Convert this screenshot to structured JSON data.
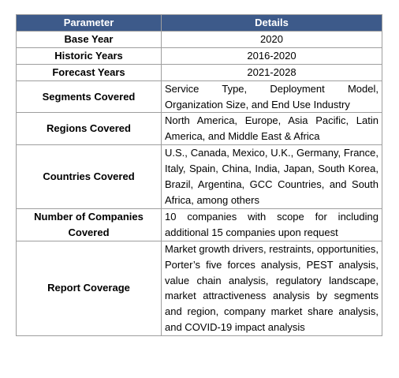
{
  "table": {
    "headers": [
      "Parameter",
      "Details"
    ],
    "rows": [
      {
        "parameter": "Base Year",
        "details": "2020"
      },
      {
        "parameter": "Historic Years",
        "details": "2016-2020"
      },
      {
        "parameter": "Forecast Years",
        "details": "2021-2028"
      },
      {
        "parameter": "Segments Covered",
        "details": "Service Type, Deployment Model, Organization Size, and End Use Industry"
      },
      {
        "parameter": "Regions Covered",
        "details": "North America, Europe, Asia Pacific, Latin America, and Middle East & Africa"
      },
      {
        "parameter": "Countries Covered",
        "details": "U.S., Canada, Mexico, U.K., Germany, France, Italy, Spain, China, India, Japan, South Korea, Brazil, Argentina, GCC Countries, and South Africa, among others"
      },
      {
        "parameter": "Number of Companies Covered",
        "details": "10 companies with scope for including additional 15 companies upon request"
      },
      {
        "parameter": "Report Coverage",
        "details": "Market growth drivers, restraints, opportunities, Porter’s five forces analysis, PEST analysis, value chain analysis, regulatory landscape, market attractiveness analysis by segments and region, company market share analysis, and COVID-19 impact analysis"
      }
    ]
  }
}
